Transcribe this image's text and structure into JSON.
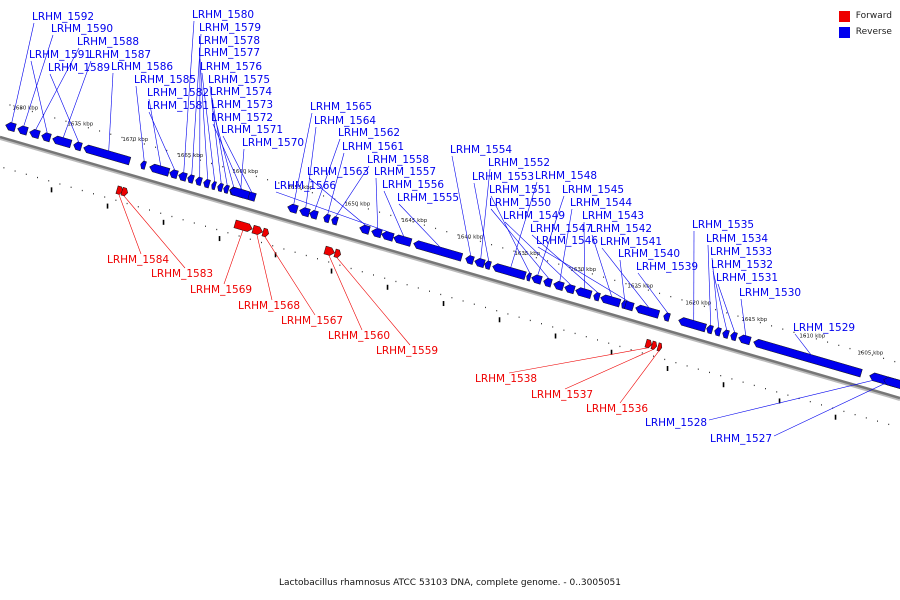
{
  "caption": "Lactobacillus rhamnosus ATCC 53103 DNA, complete genome. - 0..3005051",
  "legend": [
    {
      "label": "Forward",
      "color": "#ee0000"
    },
    {
      "label": "Reverse",
      "color": "#0000ee"
    }
  ],
  "colors": {
    "forward": "#ee0000",
    "reverse": "#0000ee",
    "backbone": "#777777"
  },
  "kbp_ticks": [
    "1680 kbp",
    "1675 kbp",
    "1670 kbp",
    "1665 kbp",
    "1660 kbp",
    "1655 kbp",
    "1650 kbp",
    "1645 kbp",
    "1640 kbp",
    "1635 kbp",
    "1630 kbp",
    "1625 kbp",
    "1620 kbp",
    "1615 kbp",
    "1610 kbp",
    "1605 kbp"
  ],
  "genes": [
    {
      "name": "LRHM_1592",
      "strand": "reverse"
    },
    {
      "name": "LRHM_1590",
      "strand": "reverse"
    },
    {
      "name": "LRHM_1588",
      "strand": "reverse"
    },
    {
      "name": "LRHM_1591",
      "strand": "reverse"
    },
    {
      "name": "LRHM_1587",
      "strand": "reverse"
    },
    {
      "name": "LRHM_1589",
      "strand": "reverse"
    },
    {
      "name": "LRHM_1586",
      "strand": "reverse"
    },
    {
      "name": "LRHM_1585",
      "strand": "reverse"
    },
    {
      "name": "LRHM_1582",
      "strand": "reverse"
    },
    {
      "name": "LRHM_1581",
      "strand": "reverse"
    },
    {
      "name": "LRHM_1580",
      "strand": "reverse"
    },
    {
      "name": "LRHM_1579",
      "strand": "reverse"
    },
    {
      "name": "LRHM_1578",
      "strand": "reverse"
    },
    {
      "name": "LRHM_1577",
      "strand": "reverse"
    },
    {
      "name": "LRHM_1576",
      "strand": "reverse"
    },
    {
      "name": "LRHM_1575",
      "strand": "reverse"
    },
    {
      "name": "LRHM_1574",
      "strand": "reverse"
    },
    {
      "name": "LRHM_1573",
      "strand": "reverse"
    },
    {
      "name": "LRHM_1572",
      "strand": "reverse"
    },
    {
      "name": "LRHM_1571",
      "strand": "reverse"
    },
    {
      "name": "LRHM_1570",
      "strand": "reverse"
    },
    {
      "name": "LRHM_1584",
      "strand": "forward"
    },
    {
      "name": "LRHM_1583",
      "strand": "forward"
    },
    {
      "name": "LRHM_1569",
      "strand": "forward"
    },
    {
      "name": "LRHM_1568",
      "strand": "forward"
    },
    {
      "name": "LRHM_1567",
      "strand": "forward"
    },
    {
      "name": "LRHM_1565",
      "strand": "reverse"
    },
    {
      "name": "LRHM_1564",
      "strand": "reverse"
    },
    {
      "name": "LRHM_1562",
      "strand": "reverse"
    },
    {
      "name": "LRHM_1561",
      "strand": "reverse"
    },
    {
      "name": "LRHM_1558",
      "strand": "reverse"
    },
    {
      "name": "LRHM_1563",
      "strand": "reverse"
    },
    {
      "name": "LRHM_1557",
      "strand": "reverse"
    },
    {
      "name": "LRHM_1566",
      "strand": "reverse"
    },
    {
      "name": "LRHM_1556",
      "strand": "reverse"
    },
    {
      "name": "LRHM_1555",
      "strand": "reverse"
    },
    {
      "name": "LRHM_1560",
      "strand": "forward"
    },
    {
      "name": "LRHM_1559",
      "strand": "forward"
    },
    {
      "name": "LRHM_1554",
      "strand": "reverse"
    },
    {
      "name": "LRHM_1552",
      "strand": "reverse"
    },
    {
      "name": "LRHM_1553",
      "strand": "reverse"
    },
    {
      "name": "LRHM_1548",
      "strand": "reverse"
    },
    {
      "name": "LRHM_1551",
      "strand": "reverse"
    },
    {
      "name": "LRHM_1545",
      "strand": "reverse"
    },
    {
      "name": "LRHM_1550",
      "strand": "reverse"
    },
    {
      "name": "LRHM_1544",
      "strand": "reverse"
    },
    {
      "name": "LRHM_1549",
      "strand": "reverse"
    },
    {
      "name": "LRHM_1543",
      "strand": "reverse"
    },
    {
      "name": "LRHM_1547",
      "strand": "reverse"
    },
    {
      "name": "LRHM_1542",
      "strand": "reverse"
    },
    {
      "name": "LRHM_1546",
      "strand": "reverse"
    },
    {
      "name": "LRHM_1541",
      "strand": "reverse"
    },
    {
      "name": "LRHM_1540",
      "strand": "reverse"
    },
    {
      "name": "LRHM_1539",
      "strand": "reverse"
    },
    {
      "name": "LRHM_1535",
      "strand": "reverse"
    },
    {
      "name": "LRHM_1534",
      "strand": "reverse"
    },
    {
      "name": "LRHM_1533",
      "strand": "reverse"
    },
    {
      "name": "LRHM_1532",
      "strand": "reverse"
    },
    {
      "name": "LRHM_1531",
      "strand": "reverse"
    },
    {
      "name": "LRHM_1530",
      "strand": "reverse"
    },
    {
      "name": "LRHM_1529",
      "strand": "reverse"
    },
    {
      "name": "LRHM_1538",
      "strand": "forward"
    },
    {
      "name": "LRHM_1537",
      "strand": "forward"
    },
    {
      "name": "LRHM_1536",
      "strand": "forward"
    },
    {
      "name": "LRHM_1528",
      "strand": "reverse"
    },
    {
      "name": "LRHM_1527",
      "strand": "reverse"
    }
  ]
}
